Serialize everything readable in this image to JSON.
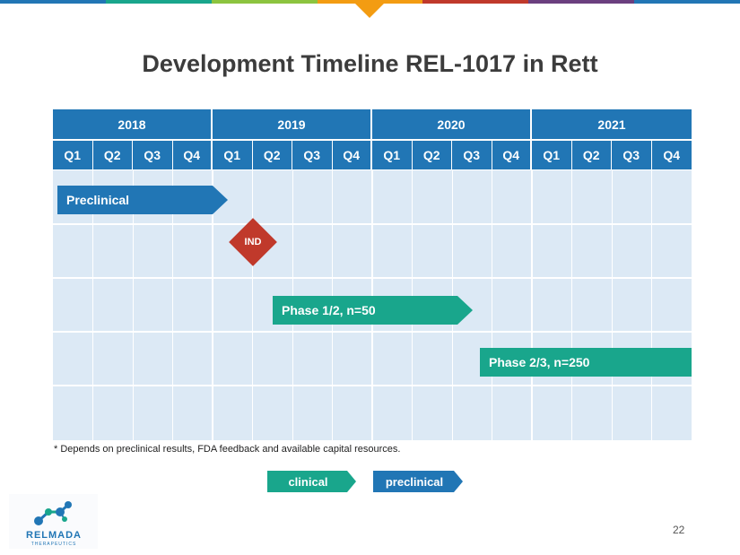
{
  "title": "Development Timeline REL-1017 in Rett",
  "topbar_colors": [
    "#2176b5",
    "#19a68c",
    "#8cc43f",
    "#f39c12",
    "#c0392b",
    "#6b3f7f",
    "#2176b5"
  ],
  "years": [
    "2018",
    "2019",
    "2020",
    "2021"
  ],
  "quarters": [
    "Q1",
    "Q2",
    "Q3",
    "Q4",
    "Q1",
    "Q2",
    "Q3",
    "Q4",
    "Q1",
    "Q2",
    "Q3",
    "Q4",
    "Q1",
    "Q2",
    "Q3",
    "Q4"
  ],
  "bars": {
    "preclinical": "Preclinical",
    "ind": "IND",
    "phase12": "Phase 1/2, n=50",
    "phase23": "Phase 2/3, n=250"
  },
  "footnote": "* Depends on preclinical results, FDA feedback and available capital resources.",
  "legend": {
    "clinical": "clinical",
    "preclinical": "preclinical"
  },
  "logo": {
    "name": "RELMADA",
    "sub": "THERAPEUTICS"
  },
  "page_number": "22",
  "colors": {
    "preclinical": "#2176b5",
    "clinical": "#19a68c",
    "milestone": "#c0392b",
    "grid_fill": "#dce9f5"
  }
}
